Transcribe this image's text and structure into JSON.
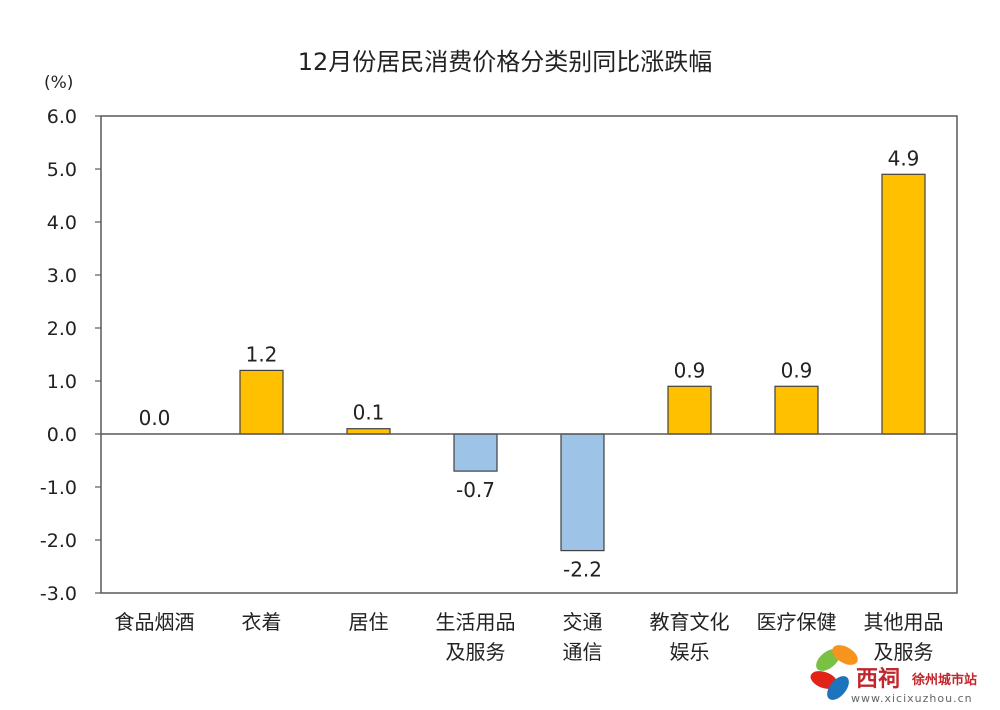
{
  "chart_data": {
    "type": "bar",
    "title": "12月份居民消费价格分类别同比涨跌幅",
    "unit_label": "(%)",
    "ylim": [
      -3.0,
      6.0
    ],
    "ytick_step": 1.0,
    "ytick_labels": [
      "6.0",
      "5.0",
      "4.0",
      "3.0",
      "2.0",
      "1.0",
      "0.0",
      "-1.0",
      "-2.0",
      "-3.0"
    ],
    "categories": [
      [
        "食品烟酒"
      ],
      [
        "衣着"
      ],
      [
        "居住"
      ],
      [
        "生活用品",
        "及服务"
      ],
      [
        "交通",
        "通信"
      ],
      [
        "教育文化",
        "娱乐"
      ],
      [
        "医疗保健"
      ],
      [
        "其他用品",
        "及服务"
      ]
    ],
    "values": [
      0.0,
      1.2,
      0.1,
      -0.7,
      -2.2,
      0.9,
      0.9,
      4.9
    ],
    "value_labels": [
      "0.0",
      "1.2",
      "0.1",
      "-0.7",
      "-2.2",
      "0.9",
      "0.9",
      "4.9"
    ],
    "colors": {
      "positive": "#FFC000",
      "negative": "#9DC3E6",
      "outline": "#404040"
    },
    "grid": false,
    "legend": "none"
  },
  "watermark": {
    "brand": "西祠",
    "site": "徐州城市站",
    "url": "www.xicixuzhou.cn"
  }
}
